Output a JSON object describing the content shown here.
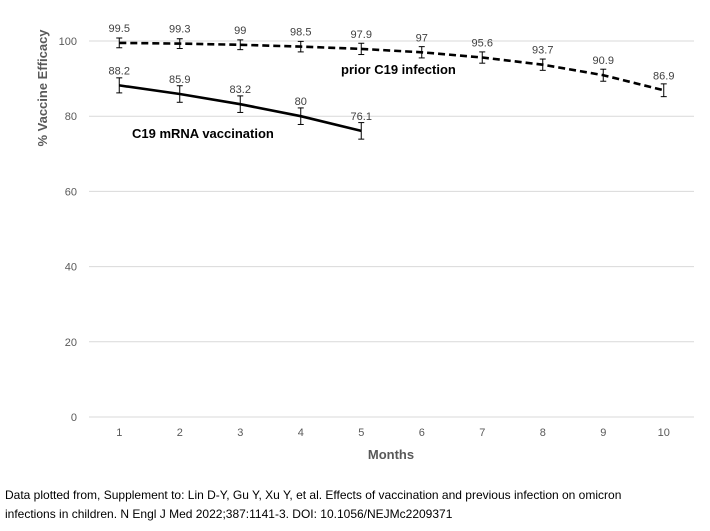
{
  "chart_data": {
    "type": "line",
    "title": "",
    "xlabel": "Months",
    "ylabel": "% Vaccine Efficacy",
    "x_categories": [
      "1",
      "2",
      "3",
      "4",
      "5",
      "6",
      "7",
      "8",
      "9",
      "10"
    ],
    "ylim": [
      0,
      100
    ],
    "yticks": [
      0,
      20,
      40,
      60,
      80,
      100
    ],
    "grid": true,
    "legend": "none",
    "series": [
      {
        "name": "prior C19 infection",
        "style": "dashed",
        "color": "#000000",
        "x": [
          1,
          2,
          3,
          4,
          5,
          6,
          7,
          8,
          9,
          10
        ],
        "values": [
          99.5,
          99.3,
          99,
          98.5,
          97.9,
          97,
          95.6,
          93.7,
          90.9,
          86.9
        ],
        "error": [
          1.3,
          1.3,
          1.3,
          1.4,
          1.5,
          1.5,
          1.5,
          1.5,
          1.6,
          1.7
        ]
      },
      {
        "name": "C19 mRNA vaccination",
        "style": "solid",
        "color": "#000000",
        "x": [
          1,
          2,
          3,
          4,
          5
        ],
        "values": [
          88.2,
          85.9,
          83.2,
          80,
          76.1
        ],
        "error": [
          2.0,
          2.2,
          2.2,
          2.2,
          2.2
        ]
      }
    ]
  },
  "caption": {
    "line1": "Data plotted from, Supplement to: Lin D-Y, Gu Y, Xu Y, et al. Effects of vaccination and previous infection on omicron",
    "line2": "infections in children. N Engl J Med 2022;387:1141-3. DOI: 10.1056/NEJMc2209371"
  }
}
